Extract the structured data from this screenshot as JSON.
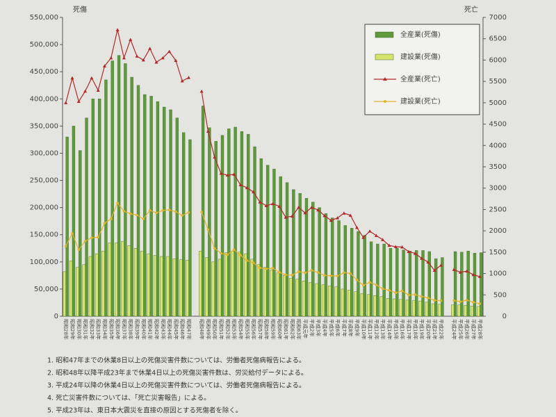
{
  "chart_data": {
    "type": "bar-line",
    "y_label": "死傷",
    "y2_label": "死亡",
    "categories": [
      "昭和28年",
      "昭和29年",
      "昭和30年",
      "昭和31年",
      "昭和32年",
      "昭和33年",
      "昭和34年",
      "昭和35年",
      "昭和36年",
      "昭和37年",
      "昭和38年",
      "昭和39年",
      "昭和40年",
      "昭和41年",
      "昭和42年",
      "昭和43年",
      "昭和44年",
      "昭和45年",
      "昭和46年",
      "昭和47年",
      null,
      "昭和48年",
      "昭和49年",
      "昭和50年",
      "昭和51年",
      "昭和52年",
      "昭和53年",
      "昭和54年",
      "昭和55年",
      "昭和56年",
      "昭和57年",
      "昭和58年",
      "昭和59年",
      "昭和60年",
      "昭和61年",
      "昭和62年",
      "昭和63年",
      "平成元年",
      "平成2年",
      "平成3年",
      "平成4年",
      "平成5年",
      "平成6年",
      "平成7年",
      "平成8年",
      "平成9年",
      "平成10年",
      "平成11年",
      "平成12年",
      "平成13年",
      "平成14年",
      "平成15年",
      "平成16年",
      "平成17年",
      "平成18年",
      "平成19年",
      "平成20年",
      "平成21年",
      "平成22年",
      null,
      "平成24年",
      "平成25年",
      "平成26年",
      "平成27年",
      "平成28年"
    ],
    "series": [
      {
        "name": "全産業(死傷)",
        "kind": "bar",
        "axis": "y",
        "color": "#5e9a3c",
        "values": [
          330000,
          350000,
          305000,
          365000,
          400000,
          400000,
          435000,
          470000,
          480000,
          465000,
          440000,
          425000,
          408000,
          405000,
          395000,
          385000,
          380000,
          365000,
          338000,
          325000,
          null,
          387000,
          347000,
          322000,
          333000,
          345000,
          348000,
          340000,
          335000,
          312000,
          290000,
          278000,
          271000,
          257000,
          246000,
          233000,
          226000,
          217000,
          210000,
          200000,
          189000,
          181000,
          176000,
          167000,
          162000,
          156000,
          149000,
          137000,
          133000,
          133000,
          125000,
          125000,
          122000,
          120000,
          121000,
          121000,
          119000,
          106000,
          108000,
          null,
          119000,
          118000,
          120000,
          116000,
          117000
        ]
      },
      {
        "name": "建設業(死傷)",
        "kind": "bar",
        "axis": "y",
        "color": "#d6e36c",
        "values": [
          82000,
          102000,
          90000,
          95000,
          110000,
          115000,
          120000,
          135000,
          135000,
          138000,
          130000,
          125000,
          120000,
          115000,
          112000,
          110000,
          110000,
          106000,
          104000,
          103000,
          null,
          120000,
          108000,
          100000,
          105000,
          117000,
          120000,
          118000,
          115000,
          105000,
          95000,
          90000,
          85000,
          80000,
          75000,
          70000,
          68000,
          65000,
          62000,
          60000,
          58000,
          56000,
          54000,
          50000,
          48000,
          45000,
          42000,
          40000,
          38000,
          36000,
          33000,
          32000,
          31000,
          30000,
          29000,
          28000,
          26000,
          23000,
          22000,
          null,
          21000,
          21000,
          20000,
          19000,
          18000
        ]
      },
      {
        "name": "全産業(死亡)",
        "kind": "line",
        "axis": "y2",
        "color": "#b42828",
        "marker": "triangle",
        "values": [
          5000,
          5580,
          5030,
          5270,
          5580,
          5290,
          5860,
          6050,
          6710,
          6050,
          6480,
          6090,
          6000,
          6270,
          5950,
          6050,
          6200,
          5990,
          5510,
          5590,
          null,
          5269,
          4330,
          3725,
          3345,
          3302,
          3326,
          3077,
          3009,
          2912,
          2674,
          2588,
          2635,
          2572,
          2318,
          2342,
          2549,
          2419,
          2550,
          2489,
          2354,
          2245,
          2301,
          2414,
          2363,
          2078,
          1844,
          1992,
          1889,
          1790,
          1658,
          1628,
          1620,
          1514,
          1472,
          1357,
          1268,
          1075,
          1195,
          null,
          1093,
          1030,
          1057,
          972,
          928
        ]
      },
      {
        "name": "建設業(死亡)",
        "kind": "line",
        "axis": "y2",
        "color": "#e2b42a",
        "marker": "circle",
        "values": [
          1640,
          1940,
          1560,
          1760,
          1840,
          1850,
          2180,
          2280,
          2650,
          2460,
          2400,
          2370,
          2280,
          2480,
          2420,
          2480,
          2490,
          2450,
          2360,
          2430,
          null,
          2439,
          2030,
          1592,
          1473,
          1441,
          1558,
          1432,
          1302,
          1252,
          1131,
          1110,
          1125,
          1031,
          966,
          963,
          1043,
          1017,
          1075,
          1026,
          955,
          946,
          943,
          1021,
          1001,
          852,
          725,
          794,
          731,
          644,
          607,
          548,
          594,
          497,
          508,
          461,
          430,
          371,
          365,
          null,
          367,
          342,
          377,
          327,
          294
        ]
      }
    ],
    "ylim": [
      0,
      550000
    ],
    "yticks": [
      0,
      {
        "value": 50000,
        "label": "50,000"
      },
      {
        "value": 100000,
        "label": "100,000"
      },
      {
        "value": 150000,
        "label": "150,000"
      },
      {
        "value": 200000,
        "label": "200,000"
      },
      {
        "value": 250000,
        "label": "250,000"
      },
      {
        "value": 300000,
        "label": "300,000"
      },
      {
        "value": 350000,
        "label": "350,000"
      },
      {
        "value": 400000,
        "label": "400,000"
      },
      {
        "value": 450000,
        "label": "450,000"
      },
      {
        "value": 500000,
        "label": "500,000"
      },
      {
        "value": 550000,
        "label": "550,000"
      }
    ],
    "y2lim": [
      0,
      7000
    ],
    "y2ticks": [
      0,
      500,
      1000,
      1500,
      2000,
      2500,
      3000,
      3500,
      4000,
      4500,
      5000,
      5500,
      6000,
      6500,
      7000
    ],
    "legend": "top-right",
    "notes": [
      "1.  昭和47年までの休業8日以上の死傷災害件数については、労働者死傷病報告による。",
      "2.  昭和48年以降平成23年まで休業4日以上の死傷災害件数は、労災給付データによる。",
      "3.  平成24年以降の休業4日以上の死傷災害件数については、労働者死傷病報告による。",
      "4.  死亡災害件数については、「死亡災害報告」による。",
      "5.  平成23年は、東日本大震災を直接の原因とする死傷者を除く。"
    ]
  }
}
